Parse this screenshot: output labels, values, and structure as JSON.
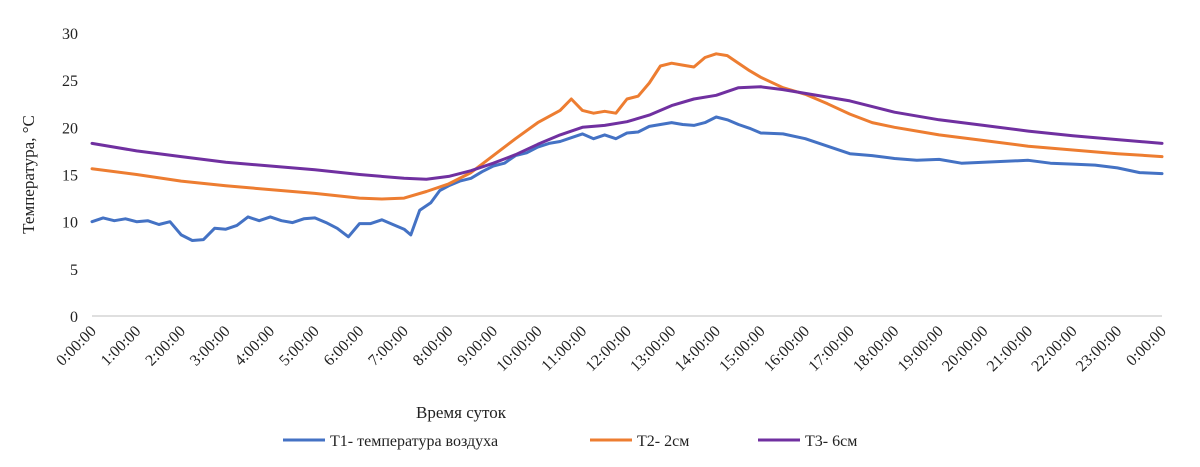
{
  "chart_data": {
    "type": "line",
    "title": "",
    "xlabel": "Время суток",
    "ylabel": "Температура, °С",
    "ylim": [
      0,
      30
    ],
    "yticks": [
      0,
      5,
      10,
      15,
      20,
      25,
      30
    ],
    "grid": false,
    "legend_position": "bottom",
    "x": [
      "0:00:00",
      "1:00:00",
      "2:00:00",
      "3:00:00",
      "4:00:00",
      "5:00:00",
      "6:00:00",
      "7:00:00",
      "8:00:00",
      "9:00:00",
      "10:00:00",
      "11:00:00",
      "12:00:00",
      "13:00:00",
      "14:00:00",
      "15:00:00",
      "16:00:00",
      "17:00:00",
      "18:00:00",
      "19:00:00",
      "20:00:00",
      "21:00:00",
      "22:00:00",
      "23:00:00",
      "0:00:00"
    ],
    "series": [
      {
        "name": "Т1- температура воздуха",
        "color": "#4472C4",
        "points": [
          [
            0,
            10.0
          ],
          [
            0.25,
            10.4
          ],
          [
            0.5,
            10.1
          ],
          [
            0.75,
            10.3
          ],
          [
            1,
            10.0
          ],
          [
            1.25,
            10.1
          ],
          [
            1.5,
            9.7
          ],
          [
            1.75,
            10.0
          ],
          [
            2,
            8.6
          ],
          [
            2.25,
            8.0
          ],
          [
            2.5,
            8.1
          ],
          [
            2.75,
            9.3
          ],
          [
            3,
            9.2
          ],
          [
            3.25,
            9.6
          ],
          [
            3.5,
            10.5
          ],
          [
            3.75,
            10.1
          ],
          [
            4,
            10.5
          ],
          [
            4.25,
            10.1
          ],
          [
            4.5,
            9.9
          ],
          [
            4.75,
            10.3
          ],
          [
            5,
            10.4
          ],
          [
            5.25,
            9.9
          ],
          [
            5.5,
            9.3
          ],
          [
            5.75,
            8.4
          ],
          [
            6,
            9.8
          ],
          [
            6.25,
            9.8
          ],
          [
            6.5,
            10.2
          ],
          [
            6.75,
            9.7
          ],
          [
            7,
            9.2
          ],
          [
            7.15,
            8.6
          ],
          [
            7.35,
            11.2
          ],
          [
            7.6,
            12.0
          ],
          [
            7.8,
            13.3
          ],
          [
            8,
            13.8
          ],
          [
            8.25,
            14.3
          ],
          [
            8.5,
            14.6
          ],
          [
            8.75,
            15.3
          ],
          [
            9,
            15.9
          ],
          [
            9.25,
            16.2
          ],
          [
            9.5,
            17.0
          ],
          [
            9.75,
            17.3
          ],
          [
            10,
            17.9
          ],
          [
            10.25,
            18.3
          ],
          [
            10.5,
            18.5
          ],
          [
            10.75,
            18.9
          ],
          [
            11,
            19.3
          ],
          [
            11.25,
            18.8
          ],
          [
            11.5,
            19.2
          ],
          [
            11.75,
            18.8
          ],
          [
            12,
            19.4
          ],
          [
            12.25,
            19.5
          ],
          [
            12.5,
            20.1
          ],
          [
            12.75,
            20.3
          ],
          [
            13,
            20.5
          ],
          [
            13.25,
            20.3
          ],
          [
            13.5,
            20.2
          ],
          [
            13.75,
            20.5
          ],
          [
            14,
            21.1
          ],
          [
            14.25,
            20.8
          ],
          [
            14.5,
            20.3
          ],
          [
            14.75,
            19.9
          ],
          [
            15,
            19.4
          ],
          [
            15.5,
            19.3
          ],
          [
            16,
            18.8
          ],
          [
            16.5,
            18.0
          ],
          [
            17,
            17.2
          ],
          [
            17.5,
            17.0
          ],
          [
            18,
            16.7
          ],
          [
            18.5,
            16.5
          ],
          [
            19,
            16.6
          ],
          [
            19.5,
            16.2
          ],
          [
            20,
            16.3
          ],
          [
            20.5,
            16.4
          ],
          [
            21,
            16.5
          ],
          [
            21.5,
            16.2
          ],
          [
            22,
            16.1
          ],
          [
            22.5,
            16.0
          ],
          [
            23,
            15.7
          ],
          [
            23.5,
            15.2
          ],
          [
            24,
            15.1
          ]
        ]
      },
      {
        "name": "Т2- 2см",
        "color": "#ED7D31",
        "points": [
          [
            0,
            15.6
          ],
          [
            1,
            15.0
          ],
          [
            2,
            14.3
          ],
          [
            3,
            13.8
          ],
          [
            4,
            13.4
          ],
          [
            5,
            13.0
          ],
          [
            6,
            12.5
          ],
          [
            6.5,
            12.4
          ],
          [
            7,
            12.5
          ],
          [
            7.5,
            13.2
          ],
          [
            8,
            14.0
          ],
          [
            8.5,
            15.2
          ],
          [
            9,
            17.0
          ],
          [
            9.5,
            18.8
          ],
          [
            10,
            20.5
          ],
          [
            10.5,
            21.8
          ],
          [
            10.75,
            23.0
          ],
          [
            11,
            21.8
          ],
          [
            11.25,
            21.5
          ],
          [
            11.5,
            21.7
          ],
          [
            11.75,
            21.5
          ],
          [
            12,
            23.0
          ],
          [
            12.25,
            23.3
          ],
          [
            12.5,
            24.7
          ],
          [
            12.75,
            26.5
          ],
          [
            13,
            26.8
          ],
          [
            13.25,
            26.6
          ],
          [
            13.5,
            26.4
          ],
          [
            13.75,
            27.4
          ],
          [
            14,
            27.8
          ],
          [
            14.25,
            27.6
          ],
          [
            14.5,
            26.8
          ],
          [
            14.75,
            26.0
          ],
          [
            15,
            25.3
          ],
          [
            15.5,
            24.2
          ],
          [
            16,
            23.5
          ],
          [
            16.5,
            22.5
          ],
          [
            17,
            21.4
          ],
          [
            17.5,
            20.5
          ],
          [
            18,
            20.0
          ],
          [
            19,
            19.2
          ],
          [
            20,
            18.6
          ],
          [
            21,
            18.0
          ],
          [
            22,
            17.6
          ],
          [
            23,
            17.2
          ],
          [
            24,
            16.9
          ]
        ]
      },
      {
        "name": "Т3- 6см",
        "color": "#7030A0",
        "points": [
          [
            0,
            18.3
          ],
          [
            1,
            17.5
          ],
          [
            2,
            16.9
          ],
          [
            3,
            16.3
          ],
          [
            4,
            15.9
          ],
          [
            5,
            15.5
          ],
          [
            6,
            15.0
          ],
          [
            7,
            14.6
          ],
          [
            7.5,
            14.5
          ],
          [
            8,
            14.8
          ],
          [
            8.5,
            15.4
          ],
          [
            9,
            16.2
          ],
          [
            9.5,
            17.1
          ],
          [
            10,
            18.2
          ],
          [
            10.5,
            19.2
          ],
          [
            11,
            20.0
          ],
          [
            11.5,
            20.2
          ],
          [
            12,
            20.6
          ],
          [
            12.5,
            21.3
          ],
          [
            13,
            22.3
          ],
          [
            13.5,
            23.0
          ],
          [
            14,
            23.4
          ],
          [
            14.5,
            24.2
          ],
          [
            15,
            24.3
          ],
          [
            15.5,
            24.0
          ],
          [
            16,
            23.6
          ],
          [
            16.5,
            23.2
          ],
          [
            17,
            22.8
          ],
          [
            17.5,
            22.2
          ],
          [
            18,
            21.6
          ],
          [
            19,
            20.8
          ],
          [
            20,
            20.2
          ],
          [
            21,
            19.6
          ],
          [
            22,
            19.1
          ],
          [
            23,
            18.7
          ],
          [
            24,
            18.3
          ]
        ]
      }
    ]
  }
}
